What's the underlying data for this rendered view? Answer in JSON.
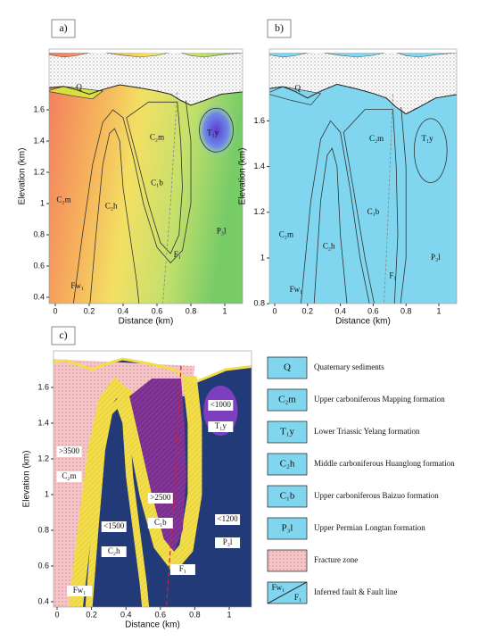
{
  "panels": [
    {
      "label": "a)",
      "x_label": "Distance (km)",
      "y_label": "Elevation (km)",
      "xticks": [
        0,
        0.2,
        0.4,
        0.6,
        0.8,
        1
      ],
      "yticks": [
        0.4,
        0.6,
        0.8,
        1,
        1.2,
        1.4,
        1.6
      ],
      "units": [
        "Q",
        "C₂m",
        "T₁y",
        "C₂m",
        "C₂h",
        "C₁b",
        "P₃l",
        "F₁",
        "Fw₁"
      ]
    },
    {
      "label": "b)",
      "x_label": "Distance (km)",
      "y_label": "Elevation (km)",
      "xticks": [
        0,
        0.2,
        0.4,
        0.6,
        0.8,
        1
      ],
      "yticks": [
        0.8,
        1,
        1.2,
        1.4,
        1.6
      ],
      "units": [
        "Q",
        "C₂m",
        "T₁y",
        "C₂m",
        "C₂h",
        "C₁b",
        "P₃l",
        "F₁",
        "Fw₁"
      ]
    },
    {
      "label": "c)",
      "x_label": "Distance (km)",
      "y_label": "Elevation (km)",
      "xticks": [
        0,
        0.2,
        0.4,
        0.6,
        0.8,
        1
      ],
      "yticks": [
        0.4,
        0.6,
        0.8,
        1,
        1.2,
        1.4,
        1.6
      ],
      "units": [
        "<1000",
        "T₁y",
        ">3500",
        "C₂m",
        ">2500",
        "C₁b",
        "<1500",
        "C₂h",
        "<1200",
        "P₃l",
        "F₁",
        "Fw₁"
      ]
    }
  ],
  "legend": [
    {
      "symbol": "Q",
      "text": "Quaternary sediments"
    },
    {
      "symbol": "C₂m",
      "text": "Upper carboniferous Mapping formation"
    },
    {
      "symbol": "T₁y",
      "text": "Lower Triassic Yelang formation"
    },
    {
      "symbol": "C₂h",
      "text": "Middle carboniferous Huanglong formation"
    },
    {
      "symbol": "C₁b",
      "text": "Upper carboniferous Baizuo formation"
    },
    {
      "symbol": "P₃l",
      "text": "Upper Permian Longtan formation"
    },
    {
      "text": "Fracture zone"
    },
    {
      "symbols": [
        "Fw₁",
        "F₁"
      ],
      "text": "Inferred fault & Fault line"
    }
  ]
}
